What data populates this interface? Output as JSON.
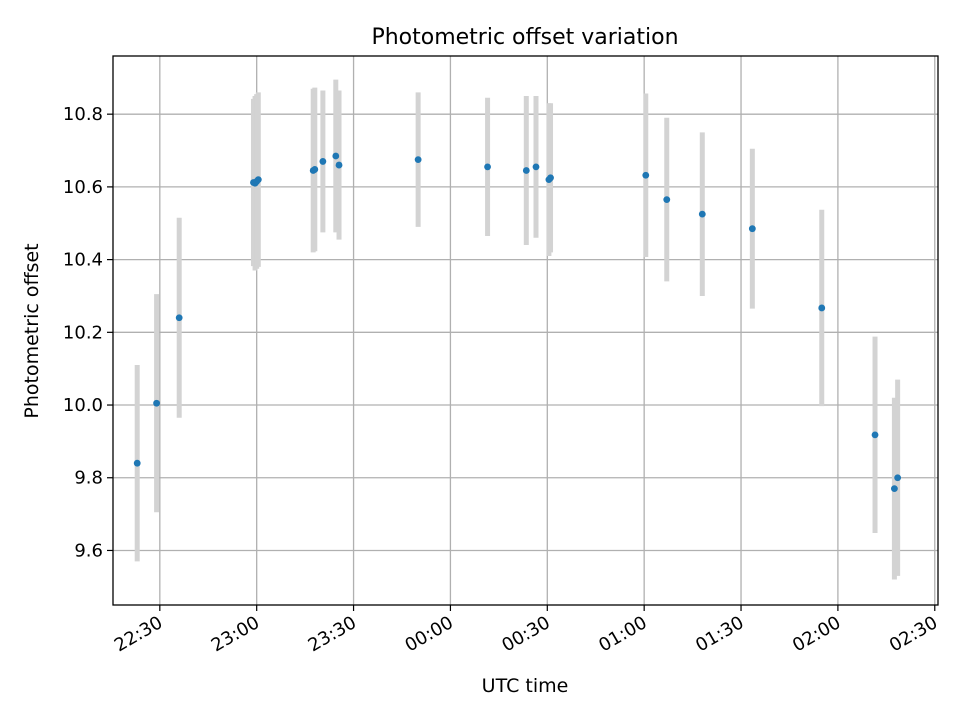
{
  "chart_data": {
    "type": "scatter",
    "title": "Photometric offset variation",
    "xlabel": "UTC time",
    "ylabel": "Photometric offset",
    "x_axis_type": "time",
    "ylim": [
      9.45,
      10.96
    ],
    "xlim": [
      "22:15:30",
      "02:31:00"
    ],
    "grid": true,
    "x_ticks": [
      "22:30",
      "23:00",
      "23:30",
      "00:00",
      "00:30",
      "01:00",
      "01:30",
      "02:00",
      "02:30"
    ],
    "y_ticks": [
      "9.6",
      "9.8",
      "10.0",
      "10.2",
      "10.4",
      "10.6",
      "10.8"
    ],
    "colors": {
      "points": "#1f77b4",
      "errorbars": "#d3d3d3",
      "grid": "#b0b0b0"
    },
    "points": [
      {
        "x": "22:23:00",
        "y": 9.84,
        "err": 0.27
      },
      {
        "x": "22:29:00",
        "y": 10.005,
        "err": 0.3
      },
      {
        "x": "22:36:00",
        "y": 10.24,
        "err": 0.275
      },
      {
        "x": "22:59:00",
        "y": 10.612,
        "err": 0.23
      },
      {
        "x": "22:59:30",
        "y": 10.61,
        "err": 0.24
      },
      {
        "x": "23:00:00",
        "y": 10.615,
        "err": 0.24
      },
      {
        "x": "23:00:30",
        "y": 10.62,
        "err": 0.24
      },
      {
        "x": "23:17:30",
        "y": 10.645,
        "err": 0.225
      },
      {
        "x": "23:18:00",
        "y": 10.648,
        "err": 0.225
      },
      {
        "x": "23:20:30",
        "y": 10.67,
        "err": 0.195
      },
      {
        "x": "23:24:30",
        "y": 10.685,
        "err": 0.21
      },
      {
        "x": "23:25:30",
        "y": 10.66,
        "err": 0.205
      },
      {
        "x": "23:50:00",
        "y": 10.675,
        "err": 0.185
      },
      {
        "x": "00:11:30",
        "y": 10.655,
        "err": 0.19
      },
      {
        "x": "00:23:30",
        "y": 10.645,
        "err": 0.205
      },
      {
        "x": "00:26:30",
        "y": 10.655,
        "err": 0.195
      },
      {
        "x": "00:30:30",
        "y": 10.62,
        "err": 0.21
      },
      {
        "x": "00:31:00",
        "y": 10.625,
        "err": 0.205
      },
      {
        "x": "01:00:30",
        "y": 10.632,
        "err": 0.225
      },
      {
        "x": "01:07:00",
        "y": 10.565,
        "err": 0.225
      },
      {
        "x": "01:18:00",
        "y": 10.525,
        "err": 0.225
      },
      {
        "x": "01:33:30",
        "y": 10.485,
        "err": 0.22
      },
      {
        "x": "01:55:00",
        "y": 10.267,
        "err": 0.27
      },
      {
        "x": "02:11:30",
        "y": 9.918,
        "err": 0.27
      },
      {
        "x": "02:17:30",
        "y": 9.77,
        "err": 0.25
      },
      {
        "x": "02:18:30",
        "y": 9.8,
        "err": 0.27
      }
    ]
  }
}
